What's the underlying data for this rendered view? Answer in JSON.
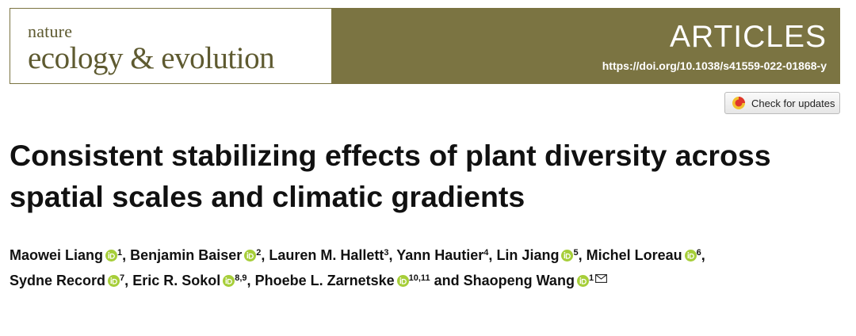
{
  "header": {
    "journal_line1": "nature",
    "journal_line2": "ecology & evolution",
    "section": "ARTICLES",
    "doi": "https://doi.org/10.1038/s41559-022-01868-y"
  },
  "button": "Check for updates",
  "title": "Consistent stabilizing effects of plant diversity across spatial scales and climatic gradients",
  "separator": ",",
  "conjunction": "and",
  "authors": [
    {
      "name": "Maowei Liang",
      "affiliation": "1",
      "orcid": true
    },
    {
      "name": "Benjamin Baiser",
      "affiliation": "2",
      "orcid": true
    },
    {
      "name": "Lauren M. Hallett",
      "affiliation": "3",
      "orcid": false
    },
    {
      "name": "Yann Hautier",
      "affiliation": "4",
      "orcid": false
    },
    {
      "name": "Lin Jiang",
      "affiliation": "5",
      "orcid": true
    },
    {
      "name": "Michel Loreau",
      "affiliation": "6",
      "orcid": true
    },
    {
      "name": "Sydne Record",
      "affiliation": "7",
      "orcid": true
    },
    {
      "name": "Eric R. Sokol",
      "affiliation": "8,9",
      "orcid": true
    },
    {
      "name": "Phoebe L. Zarnetske",
      "affiliation": "10,11",
      "orcid": true
    },
    {
      "name": "Shaopeng Wang",
      "affiliation": "1",
      "orcid": true,
      "corresponding": true
    }
  ]
}
